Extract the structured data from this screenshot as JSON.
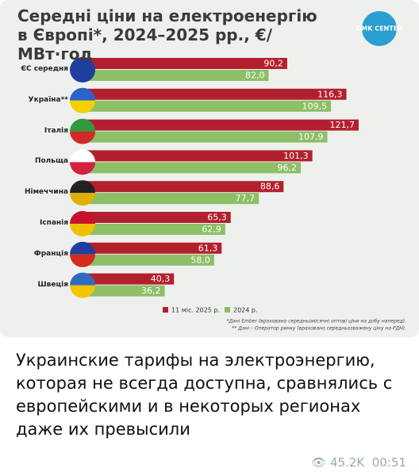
{
  "chart_data": {
    "type": "hbar",
    "title": "Середні ціни на електроенергію в Європі*, 2024–2025 рр., €/МВт·год",
    "logo": "GMK CENTER",
    "categories": [
      "ЄС середня",
      "Україна**",
      "Італія",
      "Польща",
      "Німеччина",
      "Іспанія",
      "Франція",
      "Швеція"
    ],
    "series": [
      {
        "name": "11 міс. 2025 р.",
        "color": "#b3202d",
        "values": [
          90.2,
          116.3,
          121.7,
          101.3,
          88.6,
          65.3,
          61.3,
          40.3
        ],
        "value_labels": [
          "90,2",
          "116,3",
          "121,7",
          "101,3",
          "88,6",
          "65,3",
          "61,3",
          "40,3"
        ]
      },
      {
        "name": "2024 р.",
        "color": "#8cbf66",
        "values": [
          82.0,
          109.5,
          107.9,
          96.2,
          77.7,
          62.9,
          58.0,
          36.2
        ],
        "value_labels": [
          "82,0",
          "109,5",
          "107,9",
          "96,2",
          "77,7",
          "62,9",
          "58,0",
          "36,2"
        ]
      }
    ],
    "xlim": [
      0,
      135
    ],
    "footnotes": [
      "*Дані Ember (враховано середньомісячні оптові ціни на добу наперед).",
      "** Дані – Оператор ринку (враховано середньозважену ціну на РДН)."
    ]
  },
  "message": {
    "text": "Украинские тарифы на электроэнергию, которая не всегда доступна, сравнялись с европейскими и в некоторых регионах даже их превысили",
    "views": "45.2K",
    "time": "00:51"
  }
}
